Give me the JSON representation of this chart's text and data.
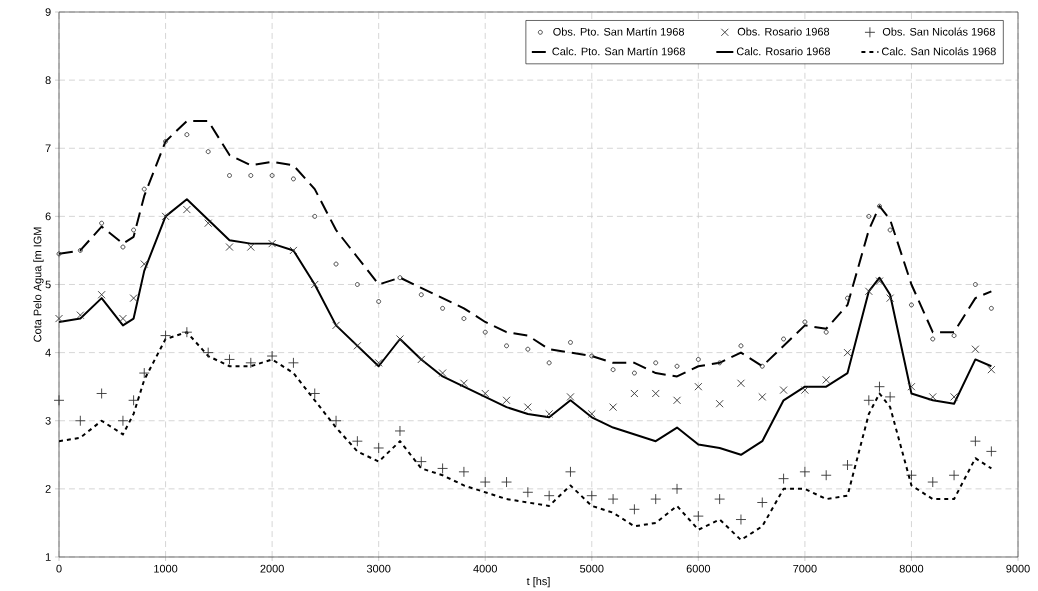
{
  "chart_data": {
    "type": "line",
    "xlabel": "t [hs]",
    "ylabel": "Cota Pelo Agua [m IGM",
    "x": [
      0,
      200,
      400,
      600,
      700,
      800,
      1000,
      1200,
      1400,
      1600,
      1800,
      2000,
      2200,
      2400,
      2600,
      2800,
      3000,
      3200,
      3400,
      3600,
      3800,
      4000,
      4200,
      4400,
      4600,
      4800,
      5000,
      5200,
      5400,
      5600,
      5800,
      6000,
      6200,
      6400,
      6600,
      6800,
      7000,
      7200,
      7400,
      7600,
      7700,
      7800,
      8000,
      8200,
      8400,
      8600,
      8750
    ],
    "series": [
      {
        "name": "Obs. Pto. San Martín 1968",
        "type": "scatter",
        "marker": "circle",
        "color": "#333333",
        "values": [
          5.45,
          5.5,
          5.9,
          5.55,
          5.8,
          6.4,
          7.1,
          7.2,
          6.95,
          6.6,
          6.6,
          6.6,
          6.55,
          6.0,
          5.3,
          5.0,
          4.75,
          5.1,
          4.85,
          4.65,
          4.5,
          4.3,
          4.1,
          4.05,
          3.85,
          4.15,
          3.95,
          3.75,
          3.7,
          3.85,
          3.8,
          3.9,
          3.85,
          4.1,
          3.8,
          4.2,
          4.45,
          4.3,
          4.8,
          6.0,
          6.15,
          5.8,
          4.7,
          4.2,
          4.25,
          5.0,
          4.65
        ]
      },
      {
        "name": "Obs. Rosario 1968",
        "type": "scatter",
        "marker": "cross",
        "color": "#333333",
        "values": [
          4.5,
          4.55,
          4.85,
          4.5,
          4.8,
          5.3,
          6.0,
          6.1,
          5.9,
          5.55,
          5.55,
          5.6,
          5.5,
          5.0,
          4.4,
          4.1,
          3.85,
          4.2,
          3.9,
          3.7,
          3.55,
          3.4,
          3.3,
          3.2,
          3.1,
          3.35,
          3.1,
          3.2,
          3.4,
          3.4,
          3.3,
          3.5,
          3.25,
          3.55,
          3.35,
          3.45,
          3.45,
          3.6,
          4.0,
          4.9,
          5.05,
          4.8,
          3.5,
          3.35,
          3.35,
          4.05,
          3.75
        ]
      },
      {
        "name": "Obs. San Nicolás 1968",
        "type": "scatter",
        "marker": "plus",
        "color": "#333333",
        "values": [
          3.3,
          3.0,
          3.4,
          3.0,
          3.3,
          3.7,
          4.25,
          4.3,
          4.0,
          3.9,
          3.85,
          3.95,
          3.85,
          3.4,
          3.0,
          2.7,
          2.6,
          2.85,
          2.4,
          2.3,
          2.25,
          2.1,
          2.1,
          1.95,
          1.9,
          2.25,
          1.9,
          1.85,
          1.7,
          1.85,
          2.0,
          1.6,
          1.85,
          1.55,
          1.8,
          2.15,
          2.25,
          2.2,
          2.35,
          3.3,
          3.5,
          3.35,
          2.2,
          2.1,
          2.2,
          2.7,
          2.55
        ]
      },
      {
        "name": "Calc. Pto. San Martín 1968",
        "line_style": "dashed",
        "color": "#000000",
        "values": [
          5.45,
          5.5,
          5.85,
          5.6,
          5.7,
          6.3,
          7.1,
          7.4,
          7.4,
          6.9,
          6.75,
          6.8,
          6.75,
          6.4,
          5.8,
          5.4,
          5.0,
          5.1,
          4.95,
          4.8,
          4.65,
          4.45,
          4.3,
          4.25,
          4.05,
          4.0,
          3.95,
          3.85,
          3.85,
          3.7,
          3.65,
          3.8,
          3.85,
          4.0,
          3.8,
          4.1,
          4.4,
          4.35,
          4.7,
          5.8,
          6.15,
          5.95,
          5.0,
          4.3,
          4.3,
          4.8,
          4.9
        ]
      },
      {
        "name": "Calc. Rosario 1968",
        "line_style": "solid",
        "color": "#000000",
        "values": [
          4.45,
          4.5,
          4.8,
          4.4,
          4.5,
          5.2,
          6.0,
          6.25,
          5.95,
          5.65,
          5.6,
          5.6,
          5.5,
          5.0,
          4.4,
          4.1,
          3.8,
          4.2,
          3.9,
          3.65,
          3.5,
          3.35,
          3.2,
          3.1,
          3.05,
          3.3,
          3.05,
          2.9,
          2.8,
          2.7,
          2.9,
          2.65,
          2.6,
          2.5,
          2.7,
          3.3,
          3.5,
          3.5,
          3.7,
          4.9,
          5.1,
          4.85,
          3.4,
          3.3,
          3.25,
          3.9,
          3.8
        ]
      },
      {
        "name": "Calc. San Nicolás 1968",
        "line_style": "dotted",
        "color": "#000000",
        "values": [
          2.7,
          2.75,
          3.0,
          2.8,
          3.1,
          3.6,
          4.2,
          4.3,
          3.95,
          3.8,
          3.8,
          3.9,
          3.7,
          3.3,
          2.9,
          2.55,
          2.4,
          2.7,
          2.3,
          2.2,
          2.05,
          1.95,
          1.85,
          1.8,
          1.75,
          2.05,
          1.75,
          1.65,
          1.45,
          1.5,
          1.75,
          1.4,
          1.55,
          1.25,
          1.45,
          2.0,
          2.0,
          1.85,
          1.9,
          3.1,
          3.4,
          3.2,
          2.05,
          1.85,
          1.85,
          2.45,
          2.3
        ]
      }
    ],
    "xlim": [
      0,
      9000
    ],
    "xticks": [
      0,
      1000,
      2000,
      3000,
      4000,
      5000,
      6000,
      7000,
      8000,
      9000
    ],
    "ylim": [
      1,
      9
    ],
    "yticks": [
      1,
      2,
      3,
      4,
      5,
      6,
      7,
      8,
      9
    ],
    "grid": true,
    "legend": "top right"
  }
}
